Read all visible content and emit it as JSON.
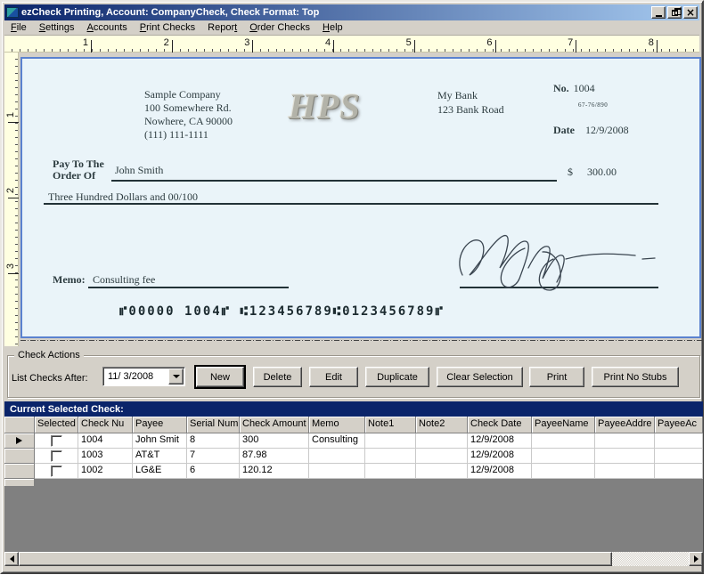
{
  "window": {
    "title": "ezCheck Printing, Account: CompanyCheck, Check Format: Top"
  },
  "menu": {
    "items": [
      {
        "label": "File",
        "u": 0
      },
      {
        "label": "Settings",
        "u": 0
      },
      {
        "label": "Accounts",
        "u": 0
      },
      {
        "label": "Print Checks",
        "u": 0
      },
      {
        "label": "Report",
        "u": 5
      },
      {
        "label": "Order Checks",
        "u": 0
      },
      {
        "label": "Help",
        "u": 0
      }
    ]
  },
  "rulers": {
    "horizontal": [
      "1",
      "2",
      "3",
      "4",
      "5",
      "6",
      "7",
      "8"
    ],
    "vertical": [
      "1",
      "2",
      "3"
    ]
  },
  "check": {
    "company": {
      "name": "Sample Company",
      "address1": "100 Somewhere Rd.",
      "address2": "Nowhere, CA 90000",
      "phone": "(111) 111-1111"
    },
    "logo": "HPS",
    "bank": {
      "name": "My Bank",
      "address": "123 Bank Road"
    },
    "number_label": "No.",
    "number": "1004",
    "fraction": "67-76/890",
    "date_label": "Date",
    "date": "12/9/2008",
    "payto_label1": "Pay To The",
    "payto_label2": "Order Of",
    "payee": "John Smith",
    "amount_symbol": "$",
    "amount": "300.00",
    "amount_words": "Three Hundred  Dollars and 00/100",
    "memo_label": "Memo:",
    "memo": "Consulting fee",
    "micr": "⑈00000 1004⑈ ⑆123456789⑆0123456789⑈"
  },
  "check_actions": {
    "group_label": "Check Actions",
    "list_label": "List Checks After:",
    "date_value": "11/ 3/2008",
    "buttons": [
      "New",
      "Delete",
      "Edit",
      "Duplicate",
      "Clear Selection",
      "Print",
      "Print No Stubs"
    ]
  },
  "grid": {
    "section_title": "Current Selected Check:",
    "columns": [
      "Selected",
      "Check Nu",
      "Payee",
      "Serial Num",
      "Check Amount",
      "Memo",
      "Note1",
      "Note2",
      "Check Date",
      "PayeeName",
      "PayeeAddre",
      "PayeeAc"
    ],
    "rows": [
      {
        "current": true,
        "selected": false,
        "cells": [
          "1004",
          "John Smit",
          "8",
          "300",
          "Consulting",
          "",
          "",
          "12/9/2008",
          "",
          "",
          ""
        ]
      },
      {
        "current": false,
        "selected": false,
        "cells": [
          "1003",
          "AT&T",
          "7",
          "87.98",
          "",
          "",
          "",
          "12/9/2008",
          "",
          "",
          ""
        ]
      },
      {
        "current": false,
        "selected": false,
        "cells": [
          "1002",
          "LG&E",
          "6",
          "120.12",
          "",
          "",
          "",
          "12/9/2008",
          "",
          "",
          ""
        ]
      }
    ]
  },
  "colors": {
    "chrome": "#d4d0c8",
    "titlebar_start": "#0a246a",
    "titlebar_end": "#a6caf0",
    "ruler_bg": "#ffffe1",
    "check_bg": "#eaf4f9",
    "check_border": "#5b82cf",
    "navy": "#0a246a",
    "grid_filler": "#808080",
    "check_ink": "#2d3c40"
  }
}
